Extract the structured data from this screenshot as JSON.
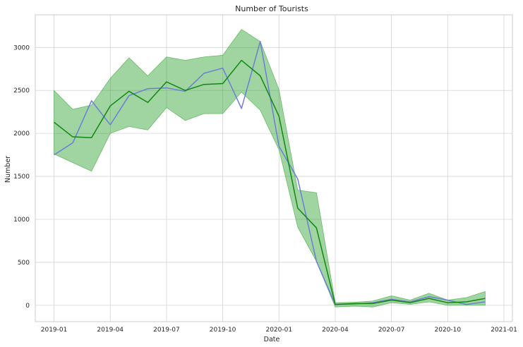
{
  "chart_data": {
    "type": "line",
    "title": "Number of Tourists",
    "xlabel": "Date",
    "ylabel": "Number",
    "xlim": [
      "2018-12-01",
      "2021-01-15"
    ],
    "ylim": [
      -190,
      3380
    ],
    "x_ticks": [
      "2019-01",
      "2019-04",
      "2019-07",
      "2019-10",
      "2020-01",
      "2020-04",
      "2020-07",
      "2020-10",
      "2021-01"
    ],
    "y_ticks": [
      0,
      500,
      1000,
      1500,
      2000,
      2500,
      3000
    ],
    "grid": true,
    "x": [
      "2019-01",
      "2019-02",
      "2019-03",
      "2019-04",
      "2019-05",
      "2019-06",
      "2019-07",
      "2019-08",
      "2019-09",
      "2019-10",
      "2019-11",
      "2019-12",
      "2020-01",
      "2020-02",
      "2020-03",
      "2020-04",
      "2020-05",
      "2020-06",
      "2020-07",
      "2020-08",
      "2020-09",
      "2020-10",
      "2020-11",
      "2020-12"
    ],
    "series": [
      {
        "color": "#6b7fd6",
        "values": [
          1750,
          1890,
          2380,
          2100,
          2440,
          2520,
          2530,
          2490,
          2700,
          2760,
          2290,
          3070,
          1850,
          1470,
          510,
          10,
          15,
          30,
          70,
          40,
          100,
          60,
          10,
          40
        ]
      },
      {
        "color": "#118811",
        "values": [
          2130,
          1960,
          1950,
          2320,
          2490,
          2360,
          2600,
          2500,
          2570,
          2580,
          2850,
          2670,
          2200,
          1130,
          900,
          10,
          20,
          20,
          60,
          30,
          80,
          30,
          40,
          80
        ]
      }
    ],
    "band": {
      "color": "#2ca02c",
      "opacity": 0.45,
      "upper": [
        2500,
        2280,
        2330,
        2640,
        2880,
        2670,
        2890,
        2850,
        2890,
        2910,
        3210,
        3070,
        2510,
        1340,
        1310,
        30,
        35,
        50,
        110,
        60,
        140,
        60,
        90,
        160
      ],
      "lower": [
        1760,
        1660,
        1560,
        2000,
        2080,
        2040,
        2300,
        2150,
        2230,
        2230,
        2480,
        2270,
        1810,
        910,
        510,
        -20,
        -10,
        -20,
        30,
        10,
        40,
        0,
        0,
        0
      ]
    }
  }
}
